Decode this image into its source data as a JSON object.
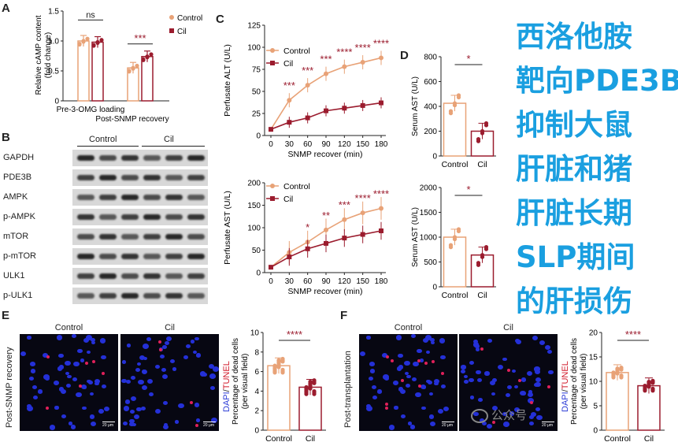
{
  "panels": {
    "a": "A",
    "b": "B",
    "c": "C",
    "d": "D",
    "e": "E",
    "f": "F"
  },
  "colors": {
    "control": "#e8a277",
    "cil": "#9b1c2e",
    "cn_text": "#1a9fe0"
  },
  "chinese_lines": [
    "西洛他胺",
    "靶向PDE3B",
    "抑制大鼠",
    "肝脏和猪",
    "肝脏长期",
    "SLP期间",
    "的肝损伤"
  ],
  "legend": {
    "control": "Control",
    "cil": "Cil"
  },
  "panelA": {
    "type": "bar",
    "ylabel": "Relative cAMP content\n(fold change)",
    "categories": [
      "Pre-3-OMG loading",
      "Post-SNMP recovery"
    ],
    "series": [
      {
        "name": "Control",
        "values": [
          1.0,
          0.55
        ]
      },
      {
        "name": "Cil",
        "values": [
          0.98,
          0.74
        ]
      }
    ],
    "ylim": [
      0,
      1.5
    ],
    "yticks": [
      "0",
      "0.5",
      "1.0",
      "1.5"
    ],
    "sig": [
      "ns",
      "***"
    ]
  },
  "panelB": {
    "groups": [
      "Control",
      "Cil"
    ],
    "proteins": [
      "GAPDH",
      "PDE3B",
      "AMPK",
      "p-AMPK",
      "mTOR",
      "p-mTOR",
      "ULK1",
      "p-ULK1"
    ]
  },
  "panelC_top": {
    "type": "line",
    "ylabel": "Perfusate ALT (U/L)",
    "xlabel": "SNMP recover (min)",
    "x": [
      0,
      30,
      60,
      90,
      120,
      150,
      180
    ],
    "xticks": [
      "0",
      "30",
      "60",
      "90",
      "120",
      "150",
      "180"
    ],
    "yticks": [
      "0",
      "25",
      "50",
      "75",
      "100",
      "125"
    ],
    "ylim": [
      0,
      125
    ],
    "series": [
      {
        "name": "Control",
        "values": [
          7,
          40,
          57,
          70,
          78,
          83,
          88
        ]
      },
      {
        "name": "Cil",
        "values": [
          7,
          15,
          20,
          28,
          31,
          34,
          37
        ]
      }
    ],
    "sig": [
      "",
      "***",
      "***",
      "***",
      "****",
      "****",
      "****"
    ]
  },
  "panelC_bottom": {
    "type": "line",
    "ylabel": "Perfusate AST (U/L)",
    "xlabel": "SNMP recover (min)",
    "x": [
      0,
      30,
      60,
      90,
      120,
      150,
      180
    ],
    "xticks": [
      "0",
      "30",
      "60",
      "90",
      "120",
      "150",
      "180"
    ],
    "yticks": [
      "0",
      "50",
      "100",
      "150",
      "200"
    ],
    "ylim": [
      0,
      200
    ],
    "series": [
      {
        "name": "Control",
        "values": [
          12,
          45,
          68,
          95,
          118,
          133,
          143
        ]
      },
      {
        "name": "Cil",
        "values": [
          12,
          35,
          53,
          65,
          77,
          85,
          93
        ]
      }
    ],
    "sig": [
      "",
      "",
      "*",
      "**",
      "***",
      "****",
      "****"
    ]
  },
  "panelD_top": {
    "type": "bar",
    "ylabel": "Serum AST (U/L)",
    "categories": [
      "Control",
      "Cil"
    ],
    "values": [
      425,
      200
    ],
    "ylim": [
      0,
      800
    ],
    "yticks": [
      "0",
      "200",
      "400",
      "600",
      "800"
    ],
    "sig": "*"
  },
  "panelD_bottom": {
    "type": "bar",
    "ylabel": "Serum AST (U/L)",
    "categories": [
      "Control",
      "Cil"
    ],
    "values": [
      1000,
      640
    ],
    "ylim": [
      0,
      2000
    ],
    "yticks": [
      "0",
      "500",
      "1000",
      "1500",
      "2000"
    ],
    "sig": "*"
  },
  "panelE": {
    "type": "bar",
    "row_label": "Post-SNMP recovery",
    "image_labels": [
      "Control",
      "Cil"
    ],
    "stain_label_dapi": "DAPI",
    "stain_label_tunel": "TUNEL",
    "scale_bar": "20 μm",
    "ylabel": "Percentage of dead cells\n(per visual field)",
    "categories": [
      "Control",
      "Cil"
    ],
    "values": [
      6.6,
      4.4
    ],
    "ylim": [
      0,
      10
    ],
    "yticks": [
      "0",
      "2",
      "4",
      "6",
      "8",
      "10"
    ],
    "sig": "****"
  },
  "panelF": {
    "type": "bar",
    "row_label": "Post-transplantation",
    "image_labels": [
      "Control",
      "Cil"
    ],
    "stain_label_dapi": "DAPI",
    "stain_label_tunel": "TUNEL",
    "scale_bar": "20 μm",
    "ylabel": "Percentage of dead cells\n(per visual field)",
    "categories": [
      "Control",
      "Cil"
    ],
    "values": [
      11.8,
      9.1
    ],
    "ylim": [
      0,
      20
    ],
    "yticks": [
      "0",
      "5",
      "10",
      "15",
      "20"
    ],
    "sig": "****"
  },
  "watermark": "公众号"
}
